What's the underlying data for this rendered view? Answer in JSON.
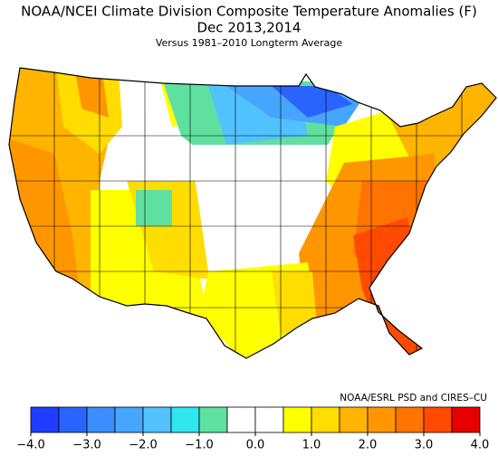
{
  "title": "NOAA/NCEI Climate Division Composite Temperature Anomalies (F)",
  "period": "Dec  2013,2014",
  "subtitle": "Versus 1981–2010 Longterm Average",
  "credit": "NOAA/ESRL PSD and CIRES–CU",
  "colorbar": {
    "bins": [
      -4,
      -3.5,
      -3,
      -2.5,
      -2,
      -1.5,
      -1,
      -0.5,
      0,
      0.5,
      1,
      1.5,
      2,
      2.5,
      3,
      3.5,
      4
    ],
    "colors": [
      "#1e3cff",
      "#2a64ff",
      "#3a8cff",
      "#46a6ff",
      "#52c2ff",
      "#2fe6ee",
      "#60e0a0",
      "#ffffff",
      "#ffffff",
      "#ffff00",
      "#ffdd00",
      "#ffb400",
      "#ff9600",
      "#ff7400",
      "#ff4a00",
      "#e60000"
    ],
    "ticks": [
      {
        "value": -4,
        "label": "−4.0"
      },
      {
        "value": -3,
        "label": "−3.0"
      },
      {
        "value": -2,
        "label": "−2.0"
      },
      {
        "value": -1,
        "label": "−1.0"
      },
      {
        "value": 0,
        "label": "0.0"
      },
      {
        "value": 1,
        "label": "1.0"
      },
      {
        "value": 2,
        "label": "2.0"
      },
      {
        "value": 3,
        "label": "3.0"
      },
      {
        "value": 4,
        "label": "4.0"
      }
    ]
  }
}
